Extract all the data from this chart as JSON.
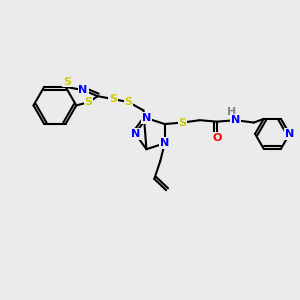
{
  "bg_color": "#ebebeb",
  "bond_color": "#000000",
  "bond_width": 1.5,
  "atom_colors": {
    "N": "#0000ff",
    "S": "#cccc00",
    "O": "#ff0000",
    "H": "#aaaaaa"
  },
  "fig_bg": "#ebebeb"
}
